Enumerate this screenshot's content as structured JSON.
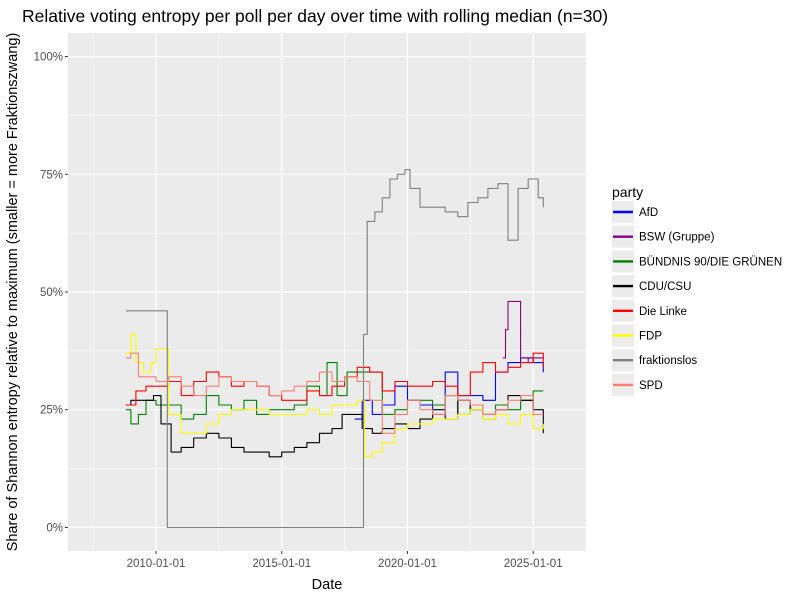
{
  "chart_data": {
    "type": "line",
    "title": "Relative voting entropy per poll per day over time with rolling median (n=30)",
    "xlabel": "Date",
    "ylabel": "Share of Shannon entropy relative to maximum (smaller = more Fraktionszwang)",
    "x_ticks": [
      "2010-01-01",
      "2015-01-01",
      "2020-01-01",
      "2025-01-01"
    ],
    "y_ticks": [
      "0%",
      "25%",
      "50%",
      "75%",
      "100%"
    ],
    "xlim": [
      2006.5,
      2027.1
    ],
    "ylim": [
      -0.05,
      1.05
    ],
    "grid": true,
    "legend_title": "party",
    "legend_position": "right",
    "series": [
      {
        "name": "AfD",
        "color": "#0000ff",
        "x": [
          2017.9,
          2018.2,
          2018.6,
          2019.0,
          2019.5,
          2020.0,
          2020.5,
          2021.0,
          2021.5,
          2022.0,
          2022.5,
          2023.0,
          2023.5,
          2024.0,
          2024.5,
          2025.0,
          2025.4
        ],
        "y": [
          0.23,
          0.27,
          0.24,
          0.26,
          0.3,
          0.27,
          0.26,
          0.24,
          0.33,
          0.28,
          0.28,
          0.27,
          0.33,
          0.35,
          0.36,
          0.35,
          0.33
        ]
      },
      {
        "name": "BSW (Gruppe)",
        "color": "#800080",
        "x": [
          2023.8,
          2023.9,
          2024.0,
          2024.2,
          2024.5,
          2024.8,
          2025.0,
          2025.4
        ],
        "y": [
          0.36,
          0.42,
          0.48,
          0.48,
          0.36,
          0.35,
          0.36,
          0.36
        ]
      },
      {
        "name": "BÜNDNIS 90/DIE GRÜNEN",
        "color": "#008000",
        "x": [
          2008.8,
          2009.0,
          2009.3,
          2009.6,
          2010.0,
          2010.5,
          2011.0,
          2011.5,
          2012.0,
          2012.5,
          2013.0,
          2013.5,
          2014.0,
          2014.5,
          2015.0,
          2015.5,
          2016.0,
          2016.5,
          2016.8,
          2017.2,
          2017.6,
          2018.0,
          2018.5,
          2019.0,
          2019.5,
          2020.0,
          2020.5,
          2021.0,
          2021.5,
          2022.0,
          2022.5,
          2023.0,
          2023.5,
          2024.0,
          2024.5,
          2025.0,
          2025.4
        ],
        "y": [
          0.25,
          0.22,
          0.24,
          0.27,
          0.26,
          0.26,
          0.23,
          0.24,
          0.28,
          0.26,
          0.25,
          0.27,
          0.24,
          0.25,
          0.25,
          0.26,
          0.3,
          0.28,
          0.35,
          0.28,
          0.33,
          0.33,
          0.33,
          0.24,
          0.25,
          0.27,
          0.27,
          0.26,
          0.28,
          0.24,
          0.26,
          0.23,
          0.26,
          0.25,
          0.27,
          0.29,
          0.29
        ]
      },
      {
        "name": "CDU/CSU",
        "color": "#000000",
        "x": [
          2008.8,
          2009.0,
          2009.3,
          2009.6,
          2009.9,
          2010.2,
          2010.6,
          2011.0,
          2011.5,
          2012.0,
          2012.5,
          2013.0,
          2013.5,
          2014.0,
          2014.5,
          2015.0,
          2015.5,
          2016.0,
          2016.5,
          2017.0,
          2017.4,
          2017.8,
          2018.2,
          2018.6,
          2019.0,
          2019.5,
          2020.0,
          2020.5,
          2021.0,
          2021.5,
          2022.0,
          2022.5,
          2023.0,
          2023.5,
          2024.0,
          2024.5,
          2025.0,
          2025.4
        ],
        "y": [
          0.26,
          0.27,
          0.27,
          0.27,
          0.28,
          0.22,
          0.16,
          0.17,
          0.19,
          0.2,
          0.19,
          0.17,
          0.16,
          0.16,
          0.15,
          0.16,
          0.17,
          0.18,
          0.2,
          0.21,
          0.24,
          0.24,
          0.21,
          0.2,
          0.21,
          0.22,
          0.21,
          0.23,
          0.25,
          0.23,
          0.27,
          0.25,
          0.24,
          0.25,
          0.28,
          0.27,
          0.25,
          0.2
        ]
      },
      {
        "name": "Die Linke",
        "color": "#ff0000",
        "x": [
          2008.8,
          2009.2,
          2009.6,
          2010.0,
          2010.5,
          2011.0,
          2011.5,
          2012.0,
          2012.5,
          2013.0,
          2013.5,
          2014.0,
          2014.5,
          2015.0,
          2015.5,
          2016.0,
          2016.5,
          2017.0,
          2017.5,
          2018.0,
          2018.5,
          2019.0,
          2019.5,
          2020.0,
          2020.5,
          2021.0,
          2021.5,
          2022.0,
          2022.5,
          2023.0,
          2023.5,
          2024.0,
          2024.5,
          2025.0,
          2025.4
        ],
        "y": [
          0.26,
          0.29,
          0.3,
          0.3,
          0.31,
          0.28,
          0.31,
          0.33,
          0.32,
          0.3,
          0.31,
          0.3,
          0.28,
          0.27,
          0.27,
          0.29,
          0.28,
          0.3,
          0.32,
          0.34,
          0.33,
          0.29,
          0.31,
          0.3,
          0.3,
          0.31,
          0.3,
          0.28,
          0.33,
          0.35,
          0.33,
          0.34,
          0.35,
          0.37,
          0.34
        ]
      },
      {
        "name": "FDP",
        "color": "#ffff00",
        "x": [
          2008.8,
          2009.0,
          2009.2,
          2009.5,
          2009.8,
          2010.0,
          2010.5,
          2011.0,
          2011.5,
          2012.0,
          2012.5,
          2013.0,
          2013.5,
          2014.0,
          2014.5,
          2015.0,
          2015.5,
          2016.0,
          2016.5,
          2017.0,
          2017.5,
          2018.0,
          2018.3,
          2018.6,
          2019.0,
          2019.5,
          2020.0,
          2020.5,
          2021.0,
          2021.5,
          2022.0,
          2022.5,
          2023.0,
          2023.5,
          2024.0,
          2024.5,
          2025.0,
          2025.4
        ],
        "y": [
          0.37,
          0.41,
          0.35,
          0.33,
          0.35,
          0.38,
          0.24,
          0.2,
          0.2,
          0.22,
          0.24,
          0.25,
          0.25,
          0.25,
          0.24,
          0.24,
          0.24,
          0.25,
          0.24,
          0.26,
          0.26,
          0.27,
          0.15,
          0.16,
          0.18,
          0.21,
          0.22,
          0.22,
          0.23,
          0.23,
          0.24,
          0.25,
          0.23,
          0.24,
          0.22,
          0.24,
          0.21,
          0.22
        ]
      },
      {
        "name": "fraktionslos",
        "color": "#7f7f7f",
        "x": [
          2008.8,
          2009.5,
          2010.3,
          2010.45,
          2015.0,
          2018.2,
          2018.25,
          2018.4,
          2018.7,
          2019.0,
          2019.3,
          2019.6,
          2019.9,
          2020.1,
          2020.5,
          2021.0,
          2021.5,
          2022.0,
          2022.4,
          2022.8,
          2023.2,
          2023.6,
          2024.0,
          2024.4,
          2024.8,
          2025.2,
          2025.4
        ],
        "y": [
          0.46,
          0.46,
          0.46,
          0.0,
          0.0,
          0.0,
          0.41,
          0.65,
          0.67,
          0.7,
          0.74,
          0.75,
          0.76,
          0.72,
          0.68,
          0.68,
          0.67,
          0.66,
          0.69,
          0.7,
          0.72,
          0.73,
          0.61,
          0.72,
          0.74,
          0.7,
          0.68
        ]
      },
      {
        "name": "SPD",
        "color": "#fa8072",
        "x": [
          2008.8,
          2009.0,
          2009.3,
          2009.6,
          2010.0,
          2010.5,
          2011.0,
          2011.5,
          2012.0,
          2012.5,
          2013.0,
          2013.5,
          2014.0,
          2014.5,
          2015.0,
          2015.5,
          2016.0,
          2016.5,
          2017.0,
          2017.5,
          2018.0,
          2018.5,
          2019.0,
          2019.5,
          2020.0,
          2020.5,
          2021.0,
          2021.5,
          2022.0,
          2022.5,
          2023.0,
          2023.5,
          2024.0,
          2024.5,
          2025.0,
          2025.4
        ],
        "y": [
          0.36,
          0.37,
          0.32,
          0.32,
          0.31,
          0.32,
          0.3,
          0.28,
          0.3,
          0.32,
          0.31,
          0.31,
          0.3,
          0.28,
          0.29,
          0.3,
          0.31,
          0.33,
          0.31,
          0.32,
          0.31,
          0.27,
          0.2,
          0.24,
          0.27,
          0.25,
          0.24,
          0.28,
          0.27,
          0.26,
          0.24,
          0.25,
          0.27,
          0.28,
          0.24,
          0.24
        ]
      }
    ]
  }
}
